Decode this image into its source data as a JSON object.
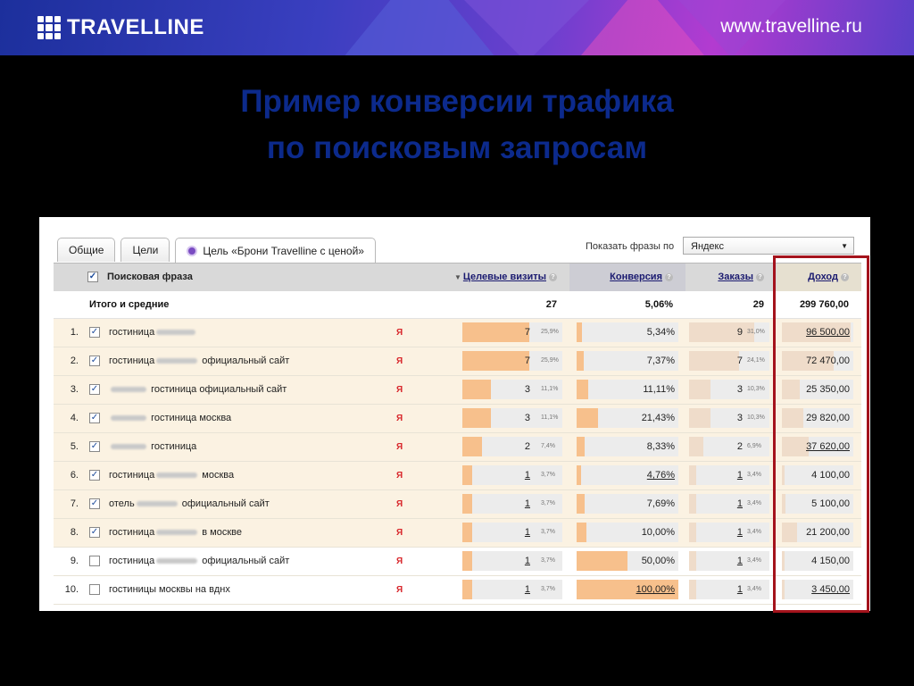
{
  "header": {
    "logo_text": "TRAVELLINE",
    "url": "www.travelline.ru"
  },
  "title": {
    "line1": "Пример конверсии трафика",
    "line2": "по поисковым запросам"
  },
  "tabs": [
    {
      "label": "Общие"
    },
    {
      "label": "Цели"
    },
    {
      "label": "Цель «Брони Travelline с ценой»"
    }
  ],
  "filter": {
    "label": "Показать фразы по",
    "selected": "Яндекс"
  },
  "table": {
    "headers": {
      "phrase": "Поисковая фраза",
      "visits": "Целевые визиты",
      "conversion": "Конверсия",
      "orders": "Заказы",
      "income": "Доход"
    },
    "total": {
      "label": "Итого и средние",
      "visits": "27",
      "conversion": "5,06%",
      "orders": "29",
      "income": "299 760,00"
    },
    "rows": [
      {
        "num": "1.",
        "phrase_a": "гостиница",
        "phrase_b": "",
        "checked": "✓",
        "visits": "7",
        "visits_pct": "25,9%",
        "visits_share": 0.259,
        "conversion": "5,34%",
        "conv_share": 0.0534,
        "orders": "9",
        "orders_pct": "31,0%",
        "orders_share": 0.31,
        "income": "96 500,00",
        "income_share": 0.322
      },
      {
        "num": "2.",
        "phrase_a": "гостиница",
        "phrase_b": "официальный сайт",
        "checked": "✓",
        "visits": "7",
        "visits_pct": "25,9%",
        "visits_share": 0.259,
        "conversion": "7,37%",
        "conv_share": 0.0737,
        "orders": "7",
        "orders_pct": "24,1%",
        "orders_share": 0.241,
        "income": "72 470,00",
        "income_share": 0.242
      },
      {
        "num": "3.",
        "phrase_a": "",
        "phrase_b": "гостиница официальный сайт",
        "checked": "✓",
        "visits": "3",
        "visits_pct": "11,1%",
        "visits_share": 0.111,
        "conversion": "11,11%",
        "conv_share": 0.1111,
        "orders": "3",
        "orders_pct": "10,3%",
        "orders_share": 0.103,
        "income": "25 350,00",
        "income_share": 0.085
      },
      {
        "num": "4.",
        "phrase_a": "",
        "phrase_b": "гостиница москва",
        "checked": "✓",
        "visits": "3",
        "visits_pct": "11,1%",
        "visits_share": 0.111,
        "conversion": "21,43%",
        "conv_share": 0.2143,
        "orders": "3",
        "orders_pct": "10,3%",
        "orders_share": 0.103,
        "income": "29 820,00",
        "income_share": 0.099
      },
      {
        "num": "5.",
        "phrase_a": "",
        "phrase_b": "гостиница",
        "checked": "✓",
        "visits": "2",
        "visits_pct": "7,4%",
        "visits_share": 0.074,
        "conversion": "8,33%",
        "conv_share": 0.0833,
        "orders": "2",
        "orders_pct": "6,9%",
        "orders_share": 0.069,
        "income": "37 620,00",
        "income_share": 0.126
      },
      {
        "num": "6.",
        "phrase_a": "гостиница",
        "phrase_b": "москва",
        "checked": "✓",
        "visits": "1",
        "visits_pct": "3,7%",
        "visits_share": 0.037,
        "conversion": "4,76%",
        "conv_share": 0.0476,
        "orders": "1",
        "orders_pct": "3,4%",
        "orders_share": 0.034,
        "income": "4 100,00",
        "income_share": 0.014
      },
      {
        "num": "7.",
        "phrase_a": "отель",
        "phrase_b": "официальный сайт",
        "checked": "✓",
        "visits": "1",
        "visits_pct": "3,7%",
        "visits_share": 0.037,
        "conversion": "7,69%",
        "conv_share": 0.0769,
        "orders": "1",
        "orders_pct": "3,4%",
        "orders_share": 0.034,
        "income": "5 100,00",
        "income_share": 0.017
      },
      {
        "num": "8.",
        "phrase_a": "гостиница",
        "phrase_b": "в москве",
        "checked": "✓",
        "visits": "1",
        "visits_pct": "3,7%",
        "visits_share": 0.037,
        "conversion": "10,00%",
        "conv_share": 0.1,
        "orders": "1",
        "orders_pct": "3,4%",
        "orders_share": 0.034,
        "income": "21 200,00",
        "income_share": 0.071
      },
      {
        "num": "9.",
        "phrase_a": "гостиница",
        "phrase_b": "официальный сайт",
        "checked": "",
        "visits": "1",
        "visits_pct": "3,7%",
        "visits_share": 0.037,
        "conversion": "50,00%",
        "conv_share": 0.5,
        "orders": "1",
        "orders_pct": "3,4%",
        "orders_share": 0.034,
        "income": "4 150,00",
        "income_share": 0.014
      },
      {
        "num": "10.",
        "phrase_a": "гостиницы москвы на вднх",
        "phrase_b": "",
        "checked": "",
        "visits": "1",
        "visits_pct": "3,7%",
        "visits_share": 0.037,
        "conversion": "100,00%",
        "conv_share": 1.0,
        "orders": "1",
        "orders_pct": "3,4%",
        "orders_share": 0.034,
        "income": "3 450,00",
        "income_share": 0.012
      }
    ]
  },
  "colors": {
    "bar_fill": "#f7c08c",
    "title": "#0c2a8c",
    "highlight_frame": "#a4131c"
  }
}
